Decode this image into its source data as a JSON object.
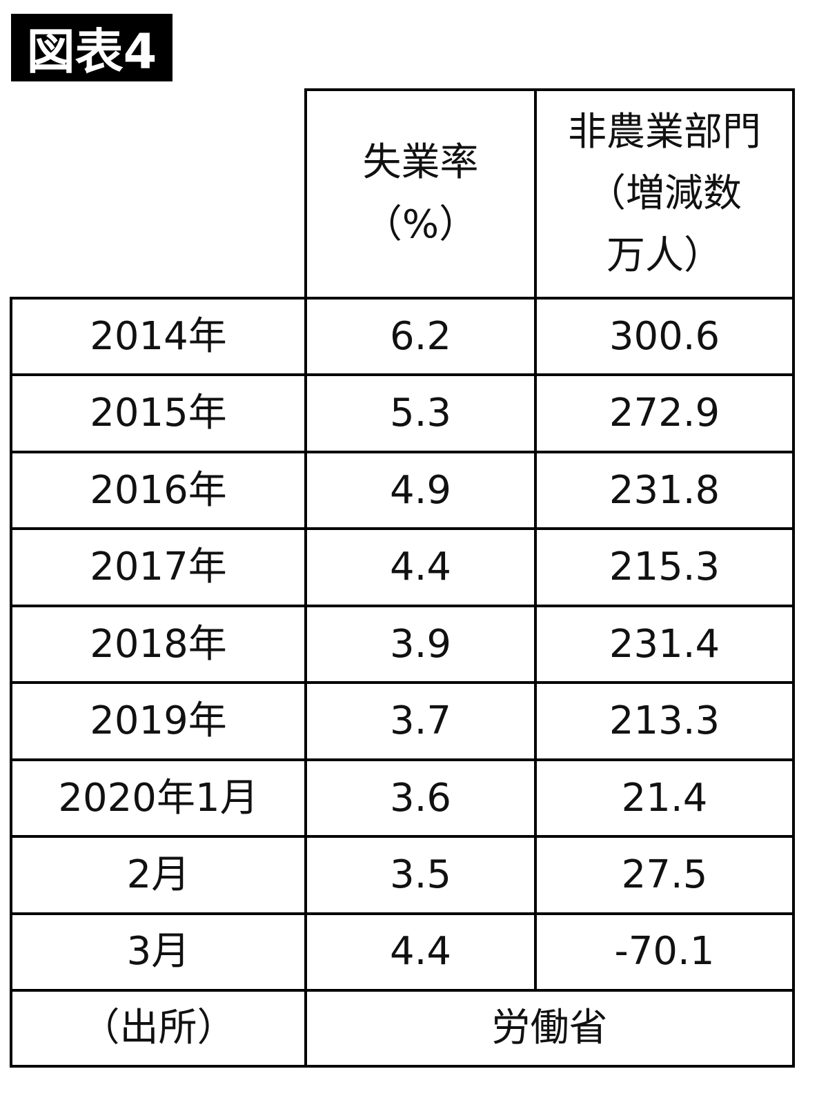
{
  "header": {
    "label": "図表4"
  },
  "table": {
    "columns": [
      [
        "失業率",
        "（%）"
      ],
      [
        "非農業部門",
        "（増減数",
        "万人）"
      ]
    ],
    "rows": [
      [
        "2014年",
        "6.2",
        "300.6"
      ],
      [
        "2015年",
        "5.3",
        "272.9"
      ],
      [
        "2016年",
        "4.9",
        "231.8"
      ],
      [
        "2017年",
        "4.4",
        "215.3"
      ],
      [
        "2018年",
        "3.9",
        "231.4"
      ],
      [
        "2019年",
        "3.7",
        "213.3"
      ],
      [
        "2020年1月",
        "3.6",
        "21.4"
      ],
      [
        "2月",
        "3.5",
        "27.5"
      ],
      [
        "3月",
        "4.4",
        "-70.1"
      ]
    ],
    "source": {
      "label": "（出所）",
      "value": "労働省"
    }
  }
}
